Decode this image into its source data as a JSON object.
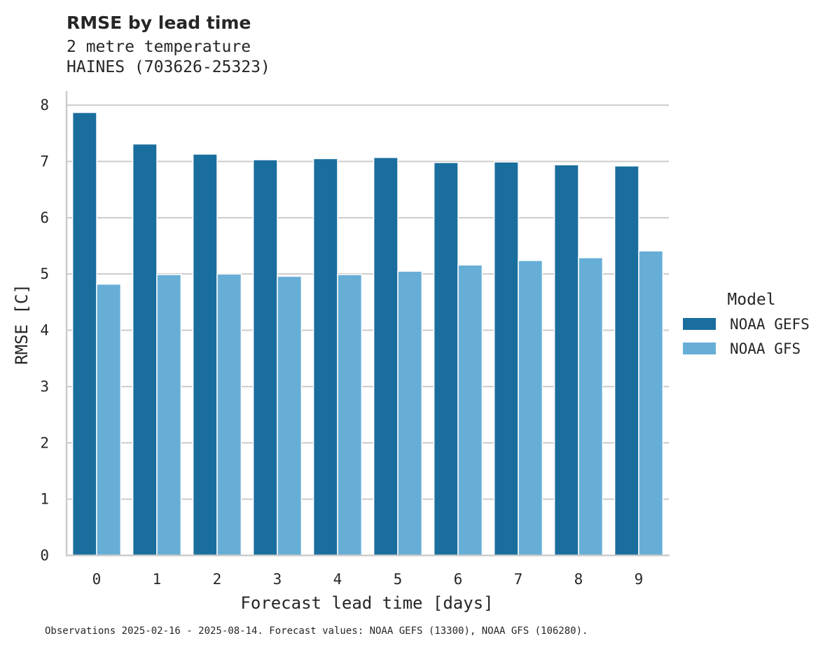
{
  "chart_data": {
    "type": "bar",
    "title": "RMSE by lead time",
    "subtitle_lines": [
      "2 metre temperature",
      "HAINES (703626-25323)"
    ],
    "xlabel": "Forecast lead time [days]",
    "ylabel": "RMSE [C]",
    "categories": [
      "0",
      "1",
      "2",
      "3",
      "4",
      "5",
      "6",
      "7",
      "8",
      "9"
    ],
    "ylim": [
      0,
      8.25
    ],
    "yticks": [
      0,
      1,
      2,
      3,
      4,
      5,
      6,
      7,
      8
    ],
    "grid": "horizontal",
    "legend": {
      "title": "Model",
      "placement": "right"
    },
    "series": [
      {
        "name": "NOAA GEFS",
        "color": "#1a6e9e",
        "values": [
          7.87,
          7.31,
          7.13,
          7.03,
          7.05,
          7.07,
          6.98,
          6.99,
          6.94,
          6.92
        ]
      },
      {
        "name": "NOAA GFS",
        "color": "#67aed7",
        "values": [
          4.82,
          4.99,
          5.0,
          4.96,
          4.99,
          5.05,
          5.16,
          5.24,
          5.29,
          5.41
        ]
      }
    ],
    "footnote": "Observations 2025-02-16 - 2025-08-14. Forecast values: NOAA GEFS (13300), NOAA GFS (106280)."
  }
}
